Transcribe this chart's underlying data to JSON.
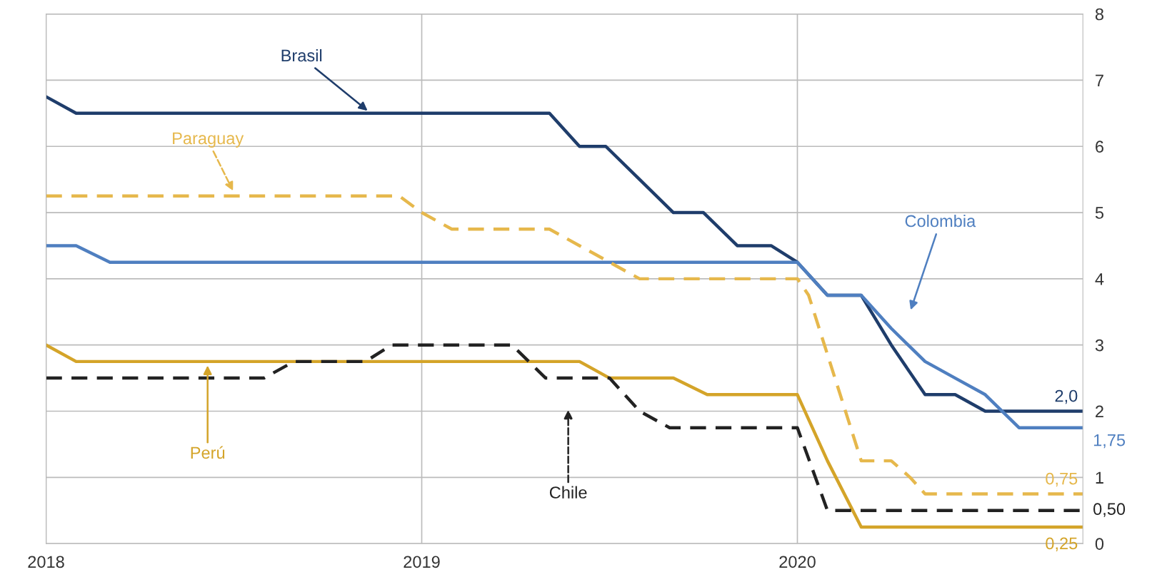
{
  "chart_data": {
    "type": "line",
    "xlim": [
      2018,
      2020.76
    ],
    "xticks": [
      2018,
      2019,
      2020
    ],
    "ylim": [
      0,
      8
    ],
    "yticks": [
      0,
      1,
      2,
      3,
      4,
      5,
      6,
      7,
      8
    ],
    "grid": true,
    "series": [
      {
        "name": "Brasil",
        "color": "#1f3d6b",
        "line_style": "solid",
        "x": [
          2018.0,
          2018.08,
          2019.34,
          2019.42,
          2019.49,
          2019.58,
          2019.67,
          2019.75,
          2019.84,
          2019.93,
          2020.0,
          2020.08,
          2020.17,
          2020.25,
          2020.34,
          2020.42,
          2020.5,
          2020.76
        ],
        "values": [
          6.75,
          6.5,
          6.5,
          6.0,
          6.0,
          5.5,
          5.0,
          5.0,
          4.5,
          4.5,
          4.25,
          3.75,
          3.75,
          3.0,
          2.25,
          2.25,
          2.0,
          2.0
        ],
        "value_labels": [
          null,
          null,
          null,
          null,
          null,
          null,
          null,
          null,
          null,
          null,
          null,
          null,
          null,
          null,
          null,
          null,
          null,
          "2,0"
        ]
      },
      {
        "name": "Colombia",
        "color": "#4f7fc0",
        "line_style": "solid",
        "x": [
          2018.0,
          2018.08,
          2018.17,
          2020.0,
          2020.08,
          2020.17,
          2020.25,
          2020.34,
          2020.42,
          2020.5,
          2020.59,
          2020.76
        ],
        "values": [
          4.5,
          4.5,
          4.25,
          4.25,
          3.75,
          3.75,
          3.25,
          2.75,
          2.5,
          2.25,
          1.75,
          1.75
        ],
        "value_labels": [
          null,
          null,
          null,
          null,
          null,
          null,
          null,
          null,
          null,
          null,
          null,
          "1,75"
        ]
      },
      {
        "name": "Paraguay",
        "color": "#e6b84c",
        "line_style": "dashed",
        "x": [
          2018.0,
          2018.94,
          2019.0,
          2019.08,
          2019.34,
          2019.42,
          2019.5,
          2019.58,
          2020.0,
          2020.03,
          2020.17,
          2020.25,
          2020.3,
          2020.34,
          2020.76
        ],
        "values": [
          5.25,
          5.25,
          5.0,
          4.75,
          4.75,
          4.5,
          4.25,
          4.0,
          4.0,
          3.75,
          1.25,
          1.25,
          1.0,
          0.75,
          0.75
        ],
        "value_labels": [
          null,
          null,
          null,
          null,
          null,
          null,
          null,
          null,
          null,
          null,
          null,
          null,
          null,
          null,
          "0,75"
        ]
      },
      {
        "name": "Perú",
        "color": "#d4a429",
        "line_style": "solid",
        "x": [
          2018.0,
          2018.08,
          2019.42,
          2019.5,
          2019.67,
          2019.76,
          2020.0,
          2020.08,
          2020.17,
          2020.76
        ],
        "values": [
          3.0,
          2.75,
          2.75,
          2.5,
          2.5,
          2.25,
          2.25,
          1.25,
          0.25,
          0.25
        ],
        "value_labels": [
          null,
          null,
          null,
          null,
          null,
          null,
          null,
          null,
          null,
          "0,25"
        ]
      },
      {
        "name": "Chile",
        "color": "#222222",
        "line_style": "dashed",
        "x": [
          2018.0,
          2018.58,
          2018.66,
          2018.85,
          2018.92,
          2019.24,
          2019.33,
          2019.5,
          2019.58,
          2019.66,
          2020.0,
          2020.08,
          2020.76
        ],
        "values": [
          2.5,
          2.5,
          2.75,
          2.75,
          3.0,
          3.0,
          2.5,
          2.5,
          2.0,
          1.75,
          1.75,
          0.5,
          0.5
        ],
        "value_labels": [
          null,
          null,
          null,
          null,
          null,
          null,
          null,
          null,
          null,
          null,
          null,
          null,
          "0,50"
        ]
      }
    ]
  }
}
